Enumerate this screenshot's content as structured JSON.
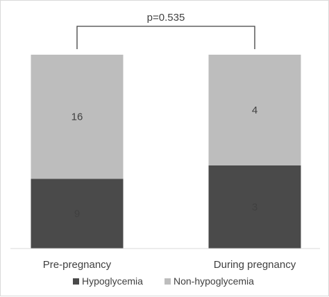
{
  "chart_data": {
    "type": "bar",
    "stacked": true,
    "categories": [
      "Pre-pregnancy",
      "During pregnancy"
    ],
    "series": [
      {
        "name": "Hypoglycemia",
        "values": [
          9,
          3
        ],
        "color": "#4a4a4a"
      },
      {
        "name": "Non-hypoglycemia",
        "values": [
          16,
          4
        ],
        "color": "#bdbdbd"
      }
    ],
    "data_labels": {
      "Hypoglycemia": [
        "9",
        "3"
      ],
      "Non-hypoglycemia": [
        "16",
        "4"
      ]
    },
    "annotation": {
      "text": "p=0.535"
    },
    "title": "",
    "xlabel": "",
    "ylabel": "",
    "grid": false,
    "legend_position": "bottom",
    "scale": "percent-stacked"
  }
}
